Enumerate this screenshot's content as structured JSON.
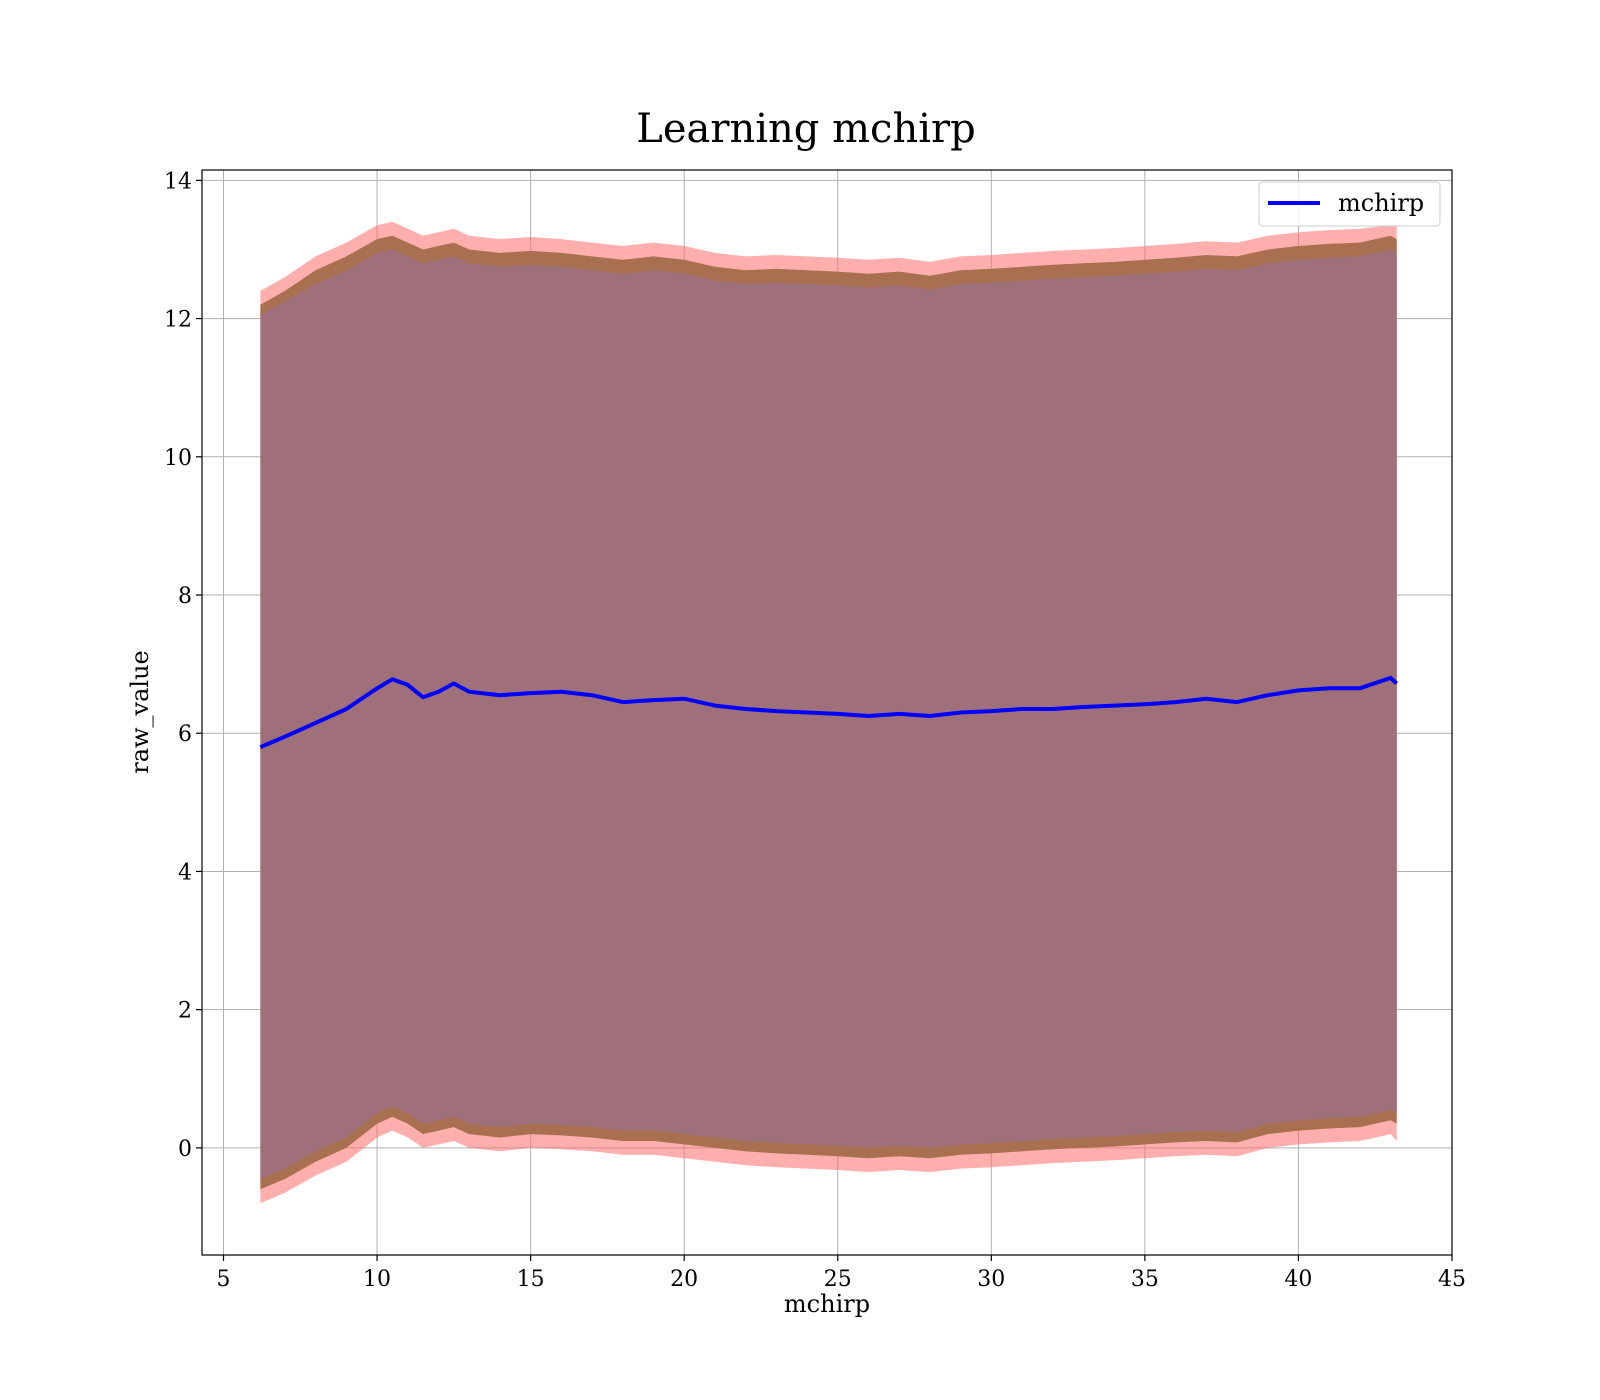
{
  "chart_data": {
    "type": "line",
    "title": "Learning mchirp",
    "xlabel": "mchirp",
    "ylabel": "raw_value",
    "xlim": [
      4.3,
      45
    ],
    "ylim": [
      -1.55,
      14.15
    ],
    "xticks": [
      5,
      10,
      15,
      20,
      25,
      30,
      35,
      40,
      45
    ],
    "yticks": [
      0,
      2,
      4,
      6,
      8,
      10,
      12,
      14
    ],
    "grid": true,
    "legend": {
      "placement": "top-right",
      "entries": [
        "mchirp"
      ]
    },
    "colors": {
      "line": "#0000ff",
      "band_outer": "#ff6b6b",
      "band_mid": "#a87050",
      "band_inner": "#a0707a",
      "grid": "#b0b0b0"
    },
    "series": [
      {
        "name": "mchirp",
        "x": [
          6.2,
          7.0,
          8.0,
          9.0,
          10.0,
          10.5,
          11.0,
          11.5,
          12.0,
          12.5,
          13.0,
          14.0,
          15.0,
          16.0,
          17.0,
          18.0,
          19.0,
          20.0,
          21.0,
          22.0,
          23.0,
          24.0,
          25.0,
          26.0,
          27.0,
          28.0,
          29.0,
          30.0,
          31.0,
          32.0,
          33.0,
          34.0,
          35.0,
          36.0,
          37.0,
          38.0,
          39.0,
          40.0,
          41.0,
          42.0,
          43.0,
          43.2
        ],
        "y": [
          5.8,
          5.95,
          6.15,
          6.35,
          6.65,
          6.78,
          6.7,
          6.52,
          6.6,
          6.72,
          6.6,
          6.55,
          6.58,
          6.6,
          6.55,
          6.45,
          6.48,
          6.5,
          6.4,
          6.35,
          6.32,
          6.3,
          6.28,
          6.25,
          6.28,
          6.25,
          6.3,
          6.32,
          6.35,
          6.35,
          6.38,
          6.4,
          6.42,
          6.45,
          6.5,
          6.45,
          6.55,
          6.62,
          6.65,
          6.65,
          6.8,
          6.72
        ],
        "band_outer_upper": [
          12.4,
          12.6,
          12.9,
          13.1,
          13.35,
          13.4,
          13.3,
          13.2,
          13.25,
          13.3,
          13.2,
          13.15,
          13.18,
          13.15,
          13.1,
          13.05,
          13.1,
          13.05,
          12.95,
          12.9,
          12.92,
          12.9,
          12.88,
          12.85,
          12.88,
          12.82,
          12.9,
          12.92,
          12.95,
          12.98,
          13.0,
          13.02,
          13.05,
          13.08,
          13.12,
          13.1,
          13.2,
          13.25,
          13.28,
          13.3,
          13.35,
          13.35
        ],
        "band_outer_lower": [
          -0.8,
          -0.65,
          -0.4,
          -0.2,
          0.15,
          0.25,
          0.15,
          0.0,
          0.05,
          0.1,
          0.0,
          -0.05,
          0.0,
          -0.02,
          -0.05,
          -0.1,
          -0.1,
          -0.15,
          -0.2,
          -0.25,
          -0.28,
          -0.3,
          -0.32,
          -0.35,
          -0.32,
          -0.35,
          -0.3,
          -0.28,
          -0.25,
          -0.22,
          -0.2,
          -0.18,
          -0.15,
          -0.12,
          -0.1,
          -0.12,
          0.0,
          0.05,
          0.08,
          0.1,
          0.2,
          0.1
        ],
        "band_mid_upper": [
          12.2,
          12.4,
          12.7,
          12.9,
          13.15,
          13.2,
          13.1,
          13.0,
          13.05,
          13.1,
          13.0,
          12.95,
          12.98,
          12.95,
          12.9,
          12.85,
          12.9,
          12.85,
          12.75,
          12.7,
          12.72,
          12.7,
          12.68,
          12.65,
          12.68,
          12.62,
          12.7,
          12.72,
          12.75,
          12.78,
          12.8,
          12.82,
          12.85,
          12.88,
          12.92,
          12.9,
          13.0,
          13.05,
          13.08,
          13.1,
          13.2,
          13.15
        ],
        "band_mid_lower": [
          -0.6,
          -0.45,
          -0.2,
          0.0,
          0.35,
          0.45,
          0.35,
          0.2,
          0.25,
          0.3,
          0.2,
          0.15,
          0.2,
          0.18,
          0.15,
          0.1,
          0.1,
          0.05,
          0.0,
          -0.05,
          -0.08,
          -0.1,
          -0.12,
          -0.15,
          -0.12,
          -0.15,
          -0.1,
          -0.08,
          -0.05,
          -0.02,
          0.0,
          0.02,
          0.05,
          0.08,
          0.1,
          0.08,
          0.2,
          0.25,
          0.28,
          0.3,
          0.4,
          0.35
        ],
        "band_inner_upper": [
          12.05,
          12.25,
          12.5,
          12.7,
          12.95,
          13.0,
          12.9,
          12.8,
          12.85,
          12.9,
          12.8,
          12.75,
          12.78,
          12.75,
          12.7,
          12.65,
          12.7,
          12.65,
          12.55,
          12.5,
          12.52,
          12.5,
          12.48,
          12.45,
          12.48,
          12.42,
          12.5,
          12.52,
          12.55,
          12.58,
          12.6,
          12.62,
          12.65,
          12.68,
          12.72,
          12.7,
          12.8,
          12.85,
          12.88,
          12.9,
          13.0,
          12.95
        ],
        "band_inner_lower": [
          -0.45,
          -0.3,
          -0.05,
          0.15,
          0.5,
          0.6,
          0.5,
          0.35,
          0.4,
          0.45,
          0.35,
          0.3,
          0.35,
          0.33,
          0.3,
          0.25,
          0.25,
          0.2,
          0.15,
          0.1,
          0.07,
          0.05,
          0.03,
          0.0,
          0.03,
          0.0,
          0.05,
          0.07,
          0.1,
          0.13,
          0.15,
          0.17,
          0.2,
          0.23,
          0.25,
          0.23,
          0.35,
          0.4,
          0.43,
          0.45,
          0.55,
          0.5
        ]
      }
    ]
  }
}
